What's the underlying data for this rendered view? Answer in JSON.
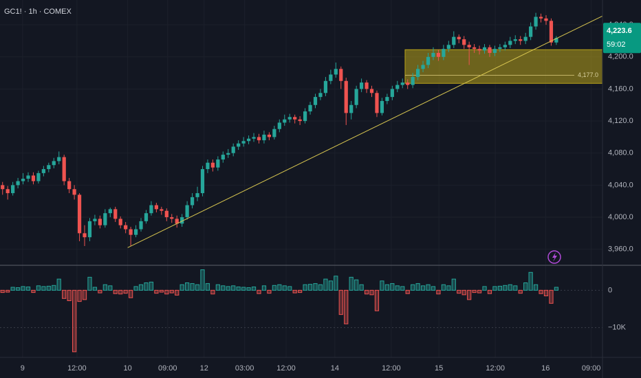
{
  "chart_data": [
    {
      "type": "candlestick",
      "title": "GC1! · 1h · COMEX",
      "up_color": "#26a69a",
      "down_color": "#ef5350",
      "open": [
        4040,
        4035,
        4030,
        4040,
        4045,
        4048,
        4052,
        4045,
        4055,
        4060,
        4065,
        4070,
        4075,
        4045,
        4035,
        4028,
        3980,
        3975,
        3995,
        3998,
        3990,
        4005,
        4010,
        3998,
        3990,
        3985,
        3978,
        3985,
        3995,
        4005,
        4015,
        4010,
        4008,
        4000,
        3998,
        3992,
        4000,
        4015,
        4025,
        4030,
        4060,
        4068,
        4062,
        4072,
        4078,
        4080,
        4088,
        4092,
        4095,
        4098,
        4100,
        4096,
        4103,
        4100,
        4110,
        4118,
        4122,
        4125,
        4122,
        4120,
        4132,
        4140,
        4150,
        4155,
        4170,
        4178,
        4185,
        4170,
        4130,
        4140,
        4160,
        4168,
        4160,
        4155,
        4130,
        4145,
        4150,
        4160,
        4165,
        4168,
        4165,
        4175,
        4185,
        4190,
        4200,
        4205,
        4200,
        4210,
        4215,
        4225,
        4222,
        4215,
        4212,
        4210,
        4208,
        4212,
        4205,
        4210,
        4212,
        4215,
        4220,
        4222,
        4220,
        4225,
        4238,
        4250,
        4248,
        4245,
        4218
      ],
      "high": [
        4044,
        4039,
        4044,
        4049,
        4055,
        4056,
        4056,
        4058,
        4064,
        4068,
        4074,
        4082,
        4078,
        4049,
        4040,
        4030,
        3990,
        3999,
        4003,
        4002,
        4010,
        4012,
        4013,
        4001,
        3994,
        3988,
        3990,
        3999,
        4009,
        4020,
        4018,
        4013,
        4011,
        4004,
        4002,
        4004,
        4020,
        4030,
        4038,
        4064,
        4072,
        4072,
        4076,
        4082,
        4085,
        4092,
        4096,
        4100,
        4102,
        4105,
        4104,
        4108,
        4106,
        4114,
        4122,
        4128,
        4129,
        4128,
        4126,
        4136,
        4144,
        4154,
        4160,
        4175,
        4184,
        4193,
        4188,
        4174,
        4145,
        4164,
        4173,
        4171,
        4164,
        4158,
        4149,
        4154,
        4164,
        4170,
        4173,
        4172,
        4180,
        4190,
        4195,
        4205,
        4212,
        4209,
        4215,
        4220,
        4232,
        4228,
        4226,
        4219,
        4216,
        4214,
        4216,
        4215,
        4214,
        4216,
        4219,
        4225,
        4227,
        4226,
        4230,
        4243,
        4255,
        4254,
        4252,
        4248,
        4226
      ],
      "low": [
        4028,
        4022,
        4027,
        4036,
        4041,
        4044,
        4041,
        4042,
        4051,
        4056,
        4061,
        4066,
        4040,
        4030,
        4022,
        3970,
        3964,
        3970,
        3990,
        3986,
        3987,
        4000,
        3994,
        3986,
        3980,
        3964,
        3975,
        3982,
        3992,
        4002,
        4006,
        4003,
        3995,
        3993,
        3987,
        3988,
        3997,
        4011,
        4020,
        4026,
        4055,
        4057,
        4058,
        4068,
        4074,
        4076,
        4084,
        4088,
        4091,
        4094,
        4092,
        4092,
        4096,
        4097,
        4106,
        4114,
        4118,
        4117,
        4115,
        4117,
        4128,
        4136,
        4146,
        4151,
        4166,
        4174,
        4160,
        4115,
        4122,
        4136,
        4156,
        4155,
        4150,
        4125,
        4127,
        4141,
        4146,
        4156,
        4161,
        4160,
        4161,
        4171,
        4181,
        4186,
        4196,
        4195,
        4196,
        4206,
        4211,
        4217,
        4210,
        4190,
        4205,
        4203,
        4204,
        4200,
        4201,
        4206,
        4208,
        4211,
        4216,
        4215,
        4216,
        4221,
        4234,
        4243,
        4240,
        4214,
        4215
      ],
      "close": [
        4035,
        4030,
        4040,
        4045,
        4048,
        4052,
        4045,
        4055,
        4060,
        4065,
        4070,
        4075,
        4045,
        4035,
        4028,
        3980,
        3975,
        3995,
        3998,
        3990,
        4005,
        4010,
        3998,
        3990,
        3985,
        3978,
        3985,
        3995,
        4005,
        4015,
        4010,
        4008,
        4000,
        3998,
        3992,
        4000,
        4015,
        4025,
        4030,
        4060,
        4068,
        4062,
        4072,
        4078,
        4080,
        4088,
        4092,
        4095,
        4098,
        4100,
        4096,
        4103,
        4100,
        4110,
        4118,
        4122,
        4125,
        4122,
        4120,
        4132,
        4140,
        4150,
        4155,
        4170,
        4178,
        4185,
        4170,
        4130,
        4140,
        4160,
        4168,
        4160,
        4155,
        4130,
        4145,
        4150,
        4160,
        4165,
        4168,
        4165,
        4175,
        4185,
        4190,
        4200,
        4205,
        4200,
        4210,
        4215,
        4225,
        4222,
        4215,
        4212,
        4210,
        4208,
        4212,
        4205,
        4210,
        4212,
        4215,
        4220,
        4222,
        4220,
        4225,
        4238,
        4250,
        4248,
        4245,
        4218,
        4223.6
      ],
      "xlim": [
        -0.5,
        117
      ],
      "xticks": [
        {
          "value": 3.9,
          "label": "9"
        },
        {
          "value": 14.5,
          "label": "12:00"
        },
        {
          "value": 24.4,
          "label": "10"
        },
        {
          "value": 32.2,
          "label": "09:00"
        },
        {
          "value": 39.3,
          "label": "12"
        },
        {
          "value": 47.2,
          "label": "03:00"
        },
        {
          "value": 55.3,
          "label": "12:00"
        },
        {
          "value": 64.8,
          "label": "14"
        },
        {
          "value": 75.8,
          "label": "12:00"
        },
        {
          "value": 85.1,
          "label": "15"
        },
        {
          "value": 96.1,
          "label": "12:00"
        },
        {
          "value": 105.9,
          "label": "16"
        },
        {
          "value": 114.8,
          "label": "09:00"
        }
      ],
      "ylim": [
        3940,
        4271
      ],
      "yticks": [
        {
          "value": 3960,
          "label": "3,960.0"
        },
        {
          "value": 4000,
          "label": "4,000.0"
        },
        {
          "value": 4040,
          "label": "4,040.0"
        },
        {
          "value": 4080,
          "label": "4,080.0"
        },
        {
          "value": 4120,
          "label": "4,120.0"
        },
        {
          "value": 4160,
          "label": "4,160.0"
        },
        {
          "value": 4200,
          "label": "4,200.0"
        },
        {
          "value": 4240,
          "label": "4,240.0"
        }
      ],
      "grid": true,
      "last_price": {
        "value": 4223.6,
        "label": "4,223.6",
        "countdown": "59:02",
        "color": "#089981"
      },
      "zone": {
        "start": 78.5,
        "high": 4209,
        "low": 4167,
        "color": "#b8a21a"
      },
      "level": {
        "value": 4177,
        "label": "4,177.0"
      },
      "trendline": {
        "x": [
          24.4,
          117
        ],
        "y": [
          3962,
          4251
        ],
        "color": "#d8c650"
      }
    },
    {
      "type": "bar",
      "values": [
        -600,
        -500,
        800,
        700,
        1000,
        900,
        -600,
        1200,
        1000,
        1100,
        1300,
        3000,
        -2200,
        -2800,
        -16500,
        -3000,
        -2500,
        3500,
        800,
        -700,
        1500,
        1200,
        -900,
        -1000,
        -800,
        -2000,
        1000,
        1500,
        2000,
        2200,
        -800,
        -500,
        -1000,
        -700,
        -1300,
        1500,
        2000,
        1800,
        1500,
        5500,
        1800,
        -1000,
        1500,
        1200,
        1000,
        1200,
        900,
        800,
        700,
        900,
        -900,
        1200,
        -800,
        1300,
        1500,
        1200,
        1000,
        -700,
        -600,
        1500,
        1600,
        1800,
        1500,
        3000,
        2500,
        3800,
        -6500,
        -9000,
        3500,
        2800,
        1500,
        -1000,
        -1200,
        -5500,
        2500,
        1500,
        1800,
        1200,
        1000,
        -900,
        1500,
        1800,
        1200,
        1500,
        1000,
        -1000,
        1500,
        1200,
        3000,
        -800,
        -1200,
        -2500,
        -600,
        -700,
        1000,
        -900,
        1000,
        1100,
        1300,
        1500,
        1200,
        -800,
        2000,
        4800,
        1500,
        -900,
        -1500,
        -3500,
        800
      ],
      "up_color": "#26a69a",
      "down_color": "#ef5350",
      "ylim": [
        -18000,
        6700
      ],
      "yticks": [
        0,
        {
          "value": -10000,
          "label": "−10K"
        }
      ]
    }
  ]
}
